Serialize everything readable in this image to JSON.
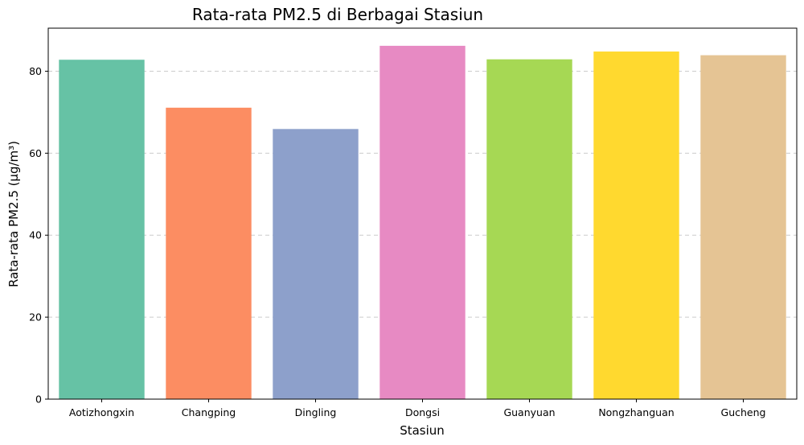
{
  "chart_data": {
    "type": "bar",
    "title": "Rata-rata PM2.5 di Berbagai Stasiun",
    "xlabel": "Stasiun",
    "ylabel": "Rata-rata PM2.5 (µg/m³)",
    "categories": [
      "Aotizhongxin",
      "Changping",
      "Dingling",
      "Dongsi",
      "Guanyuan",
      "Nongzhanguan",
      "Gucheng"
    ],
    "values": [
      82.8,
      71.1,
      65.9,
      86.2,
      82.9,
      84.8,
      83.9
    ],
    "colors": [
      "#66c2a5",
      "#fc8d62",
      "#8da0cb",
      "#e78ac3",
      "#a6d854",
      "#ffd92f",
      "#e5c494"
    ],
    "ylim": [
      0,
      90.5
    ],
    "yticks": [
      0,
      20,
      40,
      60,
      80
    ],
    "grid": "y-dashed",
    "legend": "none"
  }
}
